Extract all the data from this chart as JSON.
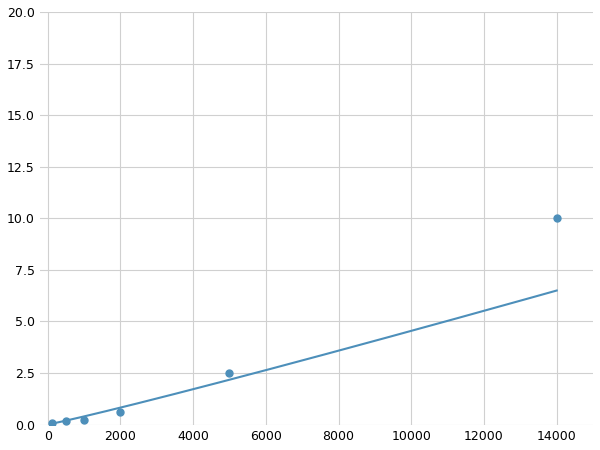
{
  "x_data": [
    125,
    500,
    1000,
    2000,
    5000,
    14000
  ],
  "y_data": [
    0.08,
    0.15,
    0.2,
    0.6,
    2.5,
    10.0
  ],
  "line_color": "#4d8fba",
  "marker_color": "#4d8fba",
  "marker_size": 5,
  "line_width": 1.5,
  "xlim": [
    -200,
    15000
  ],
  "ylim": [
    0,
    20
  ],
  "xticks": [
    0,
    2000,
    4000,
    6000,
    8000,
    10000,
    12000,
    14000
  ],
  "yticks": [
    0.0,
    2.5,
    5.0,
    7.5,
    10.0,
    12.5,
    15.0,
    17.5,
    20.0
  ],
  "grid_color": "#d0d0d0",
  "background_color": "#ffffff",
  "figure_bg": "#ffffff"
}
